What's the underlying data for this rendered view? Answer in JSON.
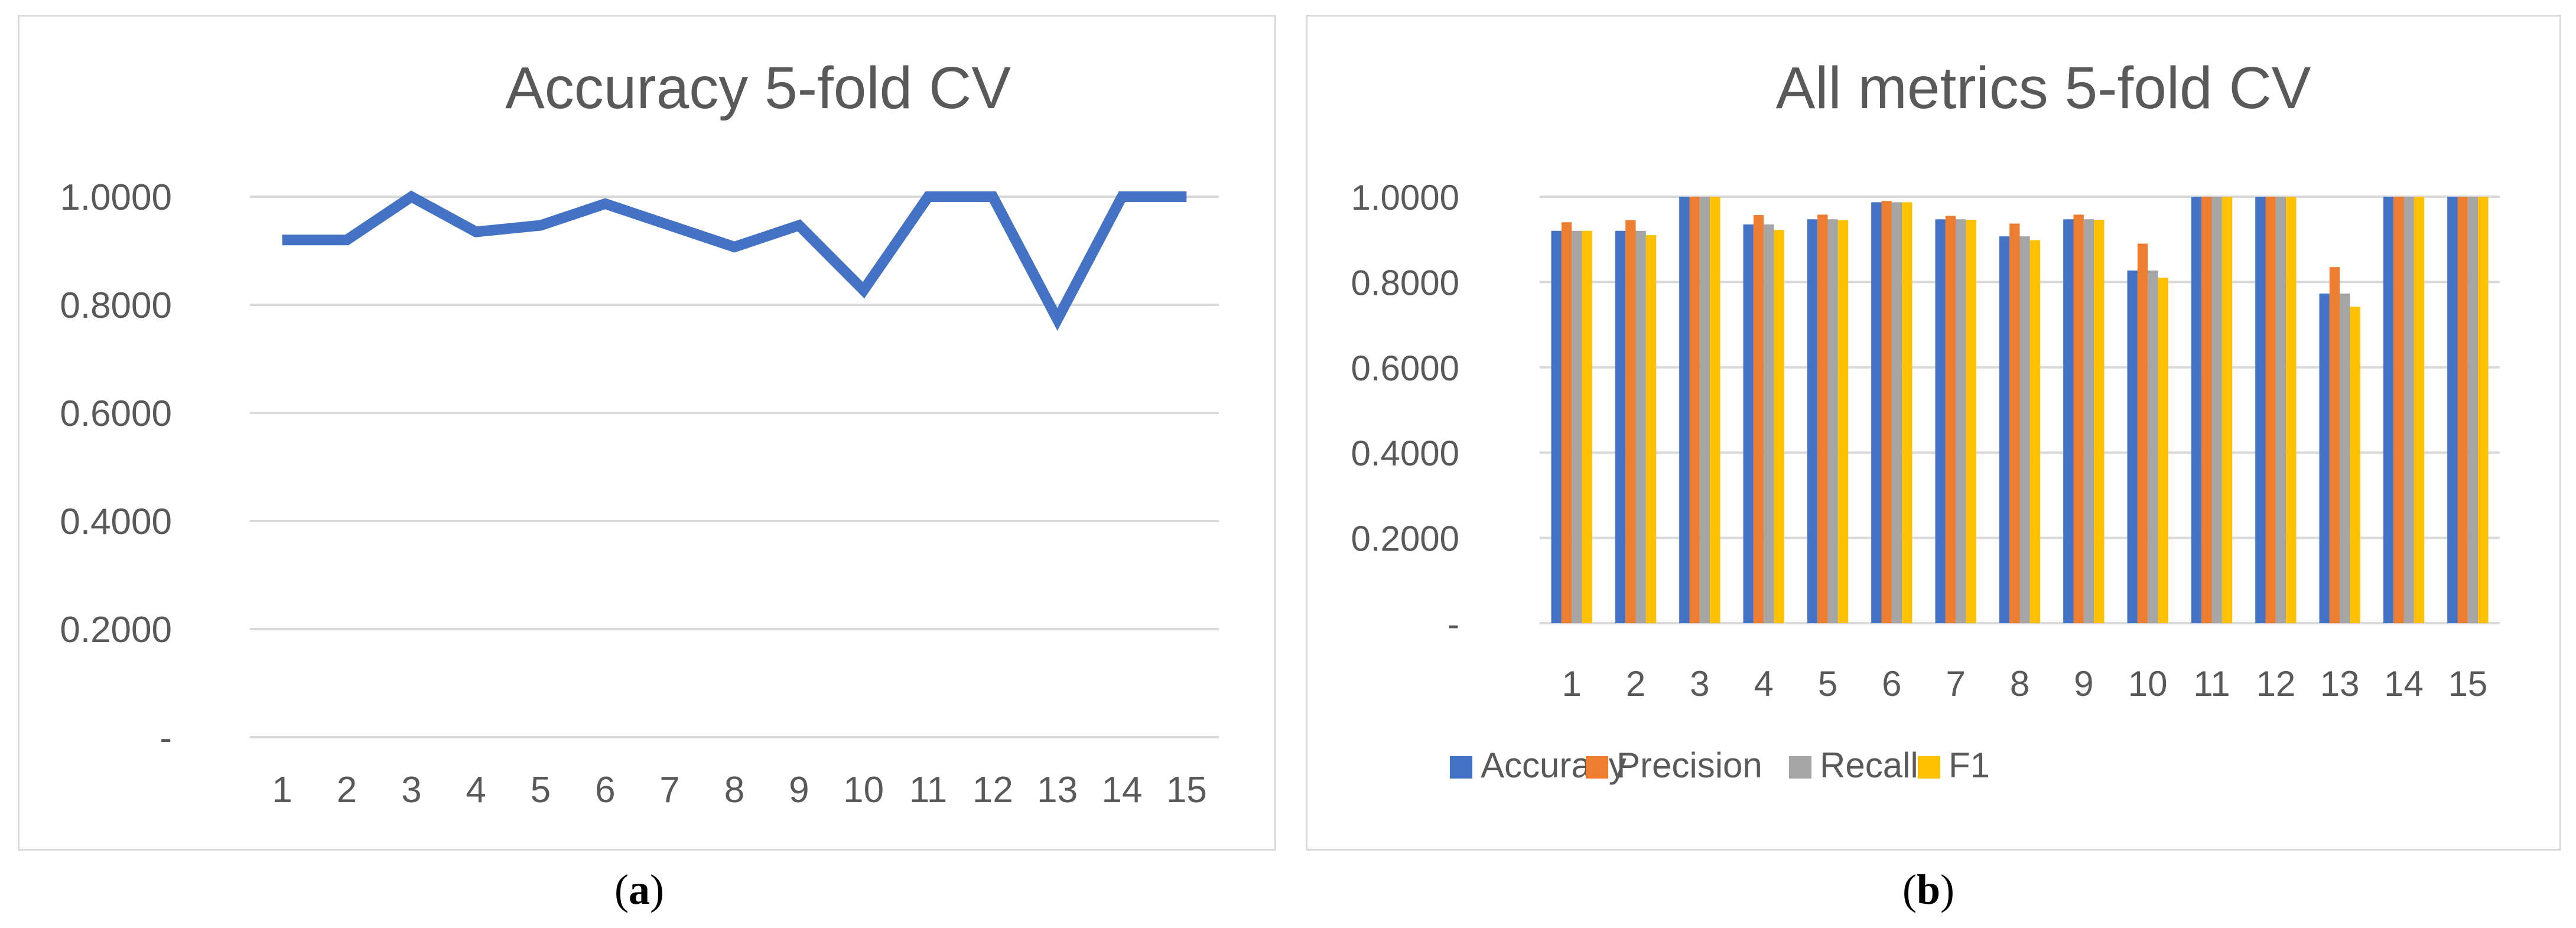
{
  "chart_data": [
    {
      "type": "line",
      "title": "Accuracy 5-fold CV",
      "xlabel": "",
      "ylabel": "",
      "categories": [
        "1",
        "2",
        "3",
        "4",
        "5",
        "6",
        "7",
        "8",
        "9",
        "10",
        "11",
        "12",
        "13",
        "14",
        "15"
      ],
      "series": [
        {
          "values": [
            0.92,
            0.92,
            1.0,
            0.935,
            0.947,
            0.987,
            0.947,
            0.907,
            0.947,
            0.827,
            1.0,
            1.0,
            0.773,
            1.0,
            1.0
          ]
        }
      ],
      "ylim": [
        0,
        1.0
      ],
      "ytick_labels": [
        "-",
        "0.2000",
        "0.4000",
        "0.6000",
        "0.8000",
        "1.0000"
      ],
      "grid": true,
      "legend": "none",
      "colors": {
        "line": "#4472C4",
        "grid": "#d9d9d9",
        "text": "#595959"
      }
    },
    {
      "type": "bar",
      "title": "All metrics 5-fold CV",
      "xlabel": "",
      "ylabel": "",
      "categories": [
        "1",
        "2",
        "3",
        "4",
        "5",
        "6",
        "7",
        "8",
        "9",
        "10",
        "11",
        "12",
        "13",
        "14",
        "15"
      ],
      "series": [
        {
          "name": "Accuracy",
          "color": "#4472C4",
          "values": [
            0.92,
            0.92,
            1.0,
            0.935,
            0.947,
            0.987,
            0.947,
            0.907,
            0.947,
            0.827,
            1.0,
            1.0,
            0.773,
            1.0,
            1.0
          ]
        },
        {
          "name": "Precision",
          "color": "#ED7D31",
          "values": [
            0.94,
            0.945,
            1.0,
            0.957,
            0.958,
            0.99,
            0.955,
            0.937,
            0.958,
            0.89,
            1.0,
            1.0,
            0.835,
            1.0,
            1.0
          ]
        },
        {
          "name": "Recall",
          "color": "#A5A5A5",
          "values": [
            0.92,
            0.92,
            1.0,
            0.935,
            0.947,
            0.987,
            0.947,
            0.907,
            0.947,
            0.827,
            1.0,
            1.0,
            0.773,
            1.0,
            1.0
          ]
        },
        {
          "name": "F1",
          "color": "#FFC000",
          "values": [
            0.92,
            0.91,
            1.0,
            0.922,
            0.945,
            0.987,
            0.946,
            0.898,
            0.946,
            0.81,
            1.0,
            1.0,
            0.742,
            1.0,
            1.0
          ]
        }
      ],
      "ylim": [
        0,
        1.0
      ],
      "ytick_labels": [
        "-",
        "0.2000",
        "0.4000",
        "0.6000",
        "0.8000",
        "1.0000"
      ],
      "grid": true,
      "legend": "bottom",
      "colors": {
        "grid": "#d9d9d9",
        "text": "#595959"
      }
    }
  ],
  "captions": {
    "a": "a",
    "b": "b"
  }
}
